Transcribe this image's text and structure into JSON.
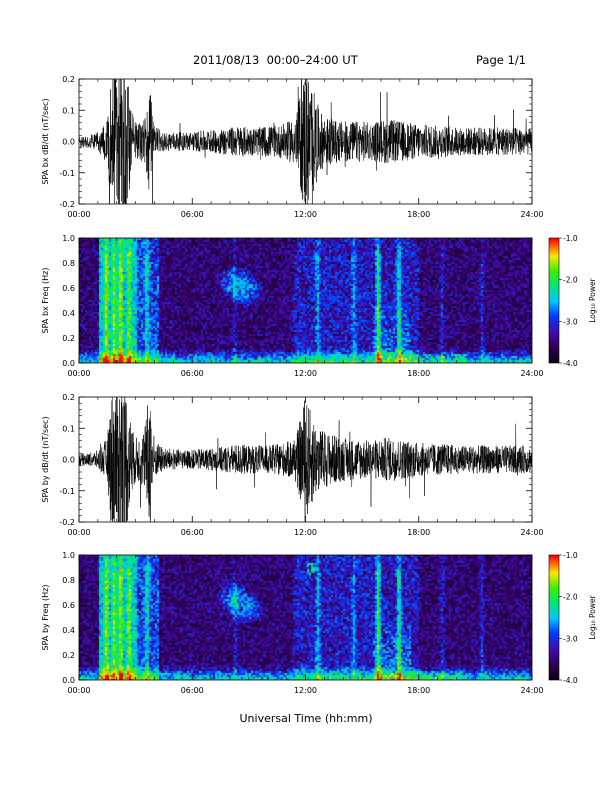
{
  "header": {
    "title": "2011/08/13  00:00–24:00 UT",
    "page": "Page 1/1"
  },
  "chart_data": [
    {
      "type": "line",
      "panel": "bx-waveform",
      "ylabel": "SPA bx dB/dt (nT/sec)",
      "xlabel": "",
      "x_ticks": [
        "00:00",
        "06:00",
        "12:00",
        "18:00",
        "24:00"
      ],
      "y_ticks": [
        "-0.2",
        "-0.1",
        "0.0",
        "0.1",
        "0.2"
      ],
      "xlim_hours": [
        0,
        24
      ],
      "ylim": [
        -0.2,
        0.2
      ],
      "envelope_hours": [
        0,
        0.5,
        1,
        1.5,
        1.75,
        2,
        2.25,
        2.5,
        2.75,
        3,
        3.25,
        3.5,
        3.75,
        4,
        4.25,
        4.5,
        5,
        5.5,
        6,
        6.5,
        7,
        7.5,
        8,
        8.5,
        9,
        9.5,
        10,
        10.5,
        11,
        11.5,
        12,
        12.25,
        12.5,
        12.75,
        13,
        13.5,
        14,
        14.5,
        15,
        15.5,
        16,
        16.5,
        17,
        17.5,
        18,
        18.5,
        19,
        19.5,
        20,
        20.5,
        21,
        21.5,
        22,
        22.5,
        23,
        23.5,
        24
      ],
      "envelope_amp": [
        0.02,
        0.02,
        0.03,
        0.07,
        0.25,
        0.25,
        0.25,
        0.25,
        0.12,
        0.06,
        0.06,
        0.08,
        0.2,
        0.05,
        0.04,
        0.03,
        0.03,
        0.03,
        0.03,
        0.035,
        0.035,
        0.04,
        0.045,
        0.05,
        0.045,
        0.045,
        0.05,
        0.05,
        0.06,
        0.08,
        0.25,
        0.2,
        0.15,
        0.1,
        0.08,
        0.07,
        0.065,
        0.065,
        0.065,
        0.06,
        0.07,
        0.07,
        0.065,
        0.06,
        0.055,
        0.055,
        0.05,
        0.05,
        0.045,
        0.045,
        0.045,
        0.045,
        0.045,
        0.045,
        0.045,
        0.045,
        0.04
      ]
    },
    {
      "type": "heatmap",
      "panel": "bx-spectrogram",
      "ylabel": "SPA bx Freq (Hz)",
      "xlabel": "",
      "x_ticks": [
        "00:00",
        "06:00",
        "12:00",
        "18:00",
        "24:00"
      ],
      "y_ticks": [
        "0.0",
        "0.2",
        "0.4",
        "0.6",
        "0.8",
        "1.0"
      ],
      "xlim_hours": [
        0,
        24
      ],
      "ylim": [
        0,
        1.0
      ],
      "colorbar_label": "Log₁₀ Power",
      "colorbar_ticks": [
        "-1.0",
        "-2.0",
        "-3.0",
        "-4.0"
      ],
      "colorbar_range": [
        -4.0,
        -1.0
      ]
    },
    {
      "type": "line",
      "panel": "by-waveform",
      "ylabel": "SPA by dB/dt (nT/sec)",
      "xlabel": "",
      "x_ticks": [
        "00:00",
        "06:00",
        "12:00",
        "18:00",
        "24:00"
      ],
      "y_ticks": [
        "-0.2",
        "-0.1",
        "0.0",
        "0.1",
        "0.2"
      ],
      "xlim_hours": [
        0,
        24
      ],
      "ylim": [
        -0.2,
        0.2
      ],
      "envelope_hours": [
        0,
        0.5,
        1,
        1.5,
        1.75,
        2,
        2.25,
        2.5,
        2.75,
        3,
        3.25,
        3.5,
        3.75,
        4,
        4.25,
        4.5,
        5,
        5.5,
        6,
        6.5,
        7,
        7.5,
        8,
        8.5,
        9,
        9.5,
        10,
        10.5,
        11,
        11.5,
        12,
        12.25,
        12.5,
        12.75,
        13,
        13.5,
        14,
        14.5,
        15,
        15.5,
        16,
        16.5,
        17,
        17.5,
        18,
        18.5,
        19,
        19.5,
        20,
        20.5,
        21,
        21.5,
        22,
        22.5,
        23,
        23.5,
        24
      ],
      "envelope_amp": [
        0.02,
        0.02,
        0.03,
        0.07,
        0.25,
        0.25,
        0.25,
        0.25,
        0.12,
        0.07,
        0.08,
        0.1,
        0.25,
        0.06,
        0.05,
        0.035,
        0.035,
        0.03,
        0.03,
        0.035,
        0.035,
        0.04,
        0.045,
        0.05,
        0.045,
        0.045,
        0.045,
        0.05,
        0.055,
        0.075,
        0.2,
        0.16,
        0.12,
        0.1,
        0.09,
        0.08,
        0.07,
        0.065,
        0.065,
        0.06,
        0.07,
        0.07,
        0.065,
        0.06,
        0.055,
        0.05,
        0.05,
        0.05,
        0.045,
        0.045,
        0.045,
        0.045,
        0.045,
        0.045,
        0.045,
        0.045,
        0.04
      ]
    },
    {
      "type": "heatmap",
      "panel": "by-spectrogram",
      "ylabel": "SPA by Freq (Hz)",
      "xlabel": "",
      "x_ticks": [
        "00:00",
        "06:00",
        "12:00",
        "18:00",
        "24:00"
      ],
      "y_ticks": [
        "0.0",
        "0.2",
        "0.4",
        "0.6",
        "0.8",
        "1.0"
      ],
      "xlim_hours": [
        0,
        24
      ],
      "ylim": [
        0,
        1.0
      ],
      "colorbar_label": "Log₁₀ Power",
      "colorbar_ticks": [
        "-1.0",
        "-2.0",
        "-3.0",
        "-4.0"
      ],
      "colorbar_range": [
        -4.0,
        -1.0
      ]
    }
  ],
  "footer": {
    "xlabel": "Universal Time (hh:mm)"
  },
  "colors": {
    "background": "#ffffff",
    "trace": "#000000",
    "spectro_bg": "#0a0015"
  }
}
